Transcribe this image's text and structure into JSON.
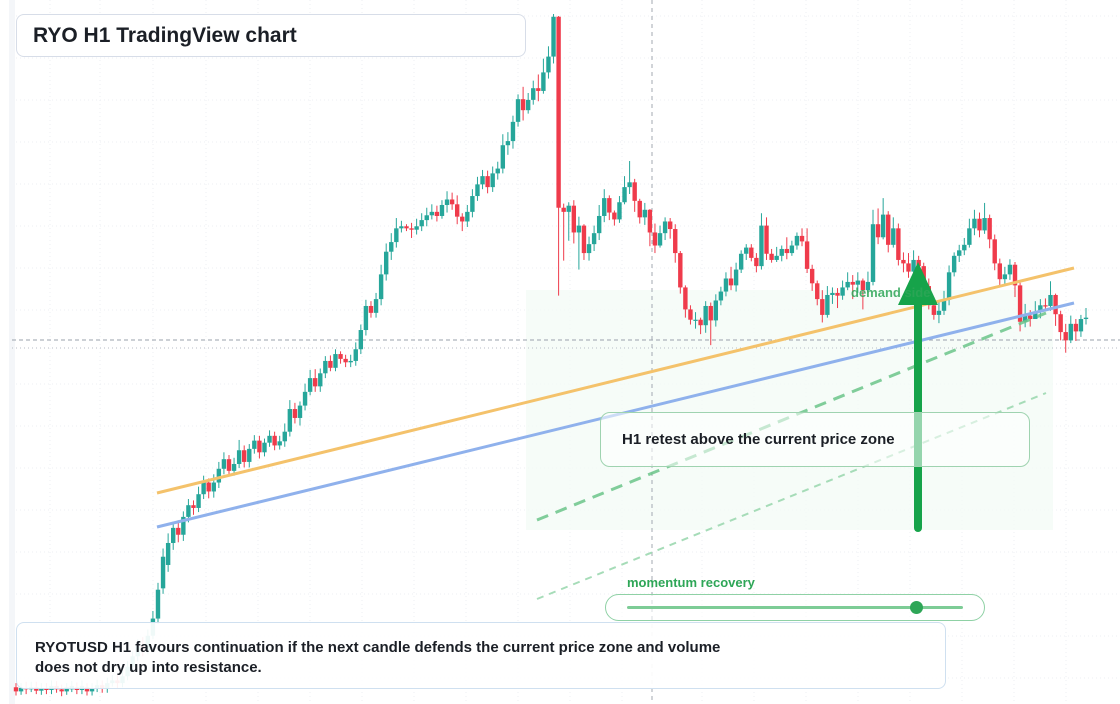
{
  "title": "RYO H1 TradingView chart",
  "callout": "H1 retest above the current price zone",
  "momentum": {
    "label": "momentum recovery",
    "level": 0.86
  },
  "demand_label": "demand side",
  "note": "RYOTUSD H1 favours continuation if the next candle defends the current price zone and volume does not dry up into resistance.",
  "colors": {
    "up": "#26a69a",
    "down": "#ef3b4b",
    "accent": "#16a34a",
    "orange": "#f4c26b",
    "blue": "#8fb1ec"
  },
  "chart_data": {
    "type": "candlestick",
    "y_reference": {
      "min": 0,
      "max": 100
    },
    "candles": [
      [
        2,
        1.4,
        2.6,
        0.8
      ],
      [
        1.4,
        1.9,
        2.6,
        0.9
      ],
      [
        1.9,
        1.7,
        2.8,
        1
      ],
      [
        1.7,
        2,
        2.8,
        1.3
      ],
      [
        2,
        1.5,
        2.8,
        1
      ],
      [
        1.5,
        1.9,
        2.6,
        0.9
      ],
      [
        1.9,
        1.6,
        2.6,
        1
      ],
      [
        1.6,
        2.2,
        3,
        1
      ],
      [
        2.2,
        1.7,
        2.9,
        1.2
      ],
      [
        1.7,
        1.4,
        2.4,
        0.7
      ],
      [
        1.4,
        2,
        2.6,
        0.9
      ],
      [
        1.7,
        2.2,
        2.9,
        1.3
      ],
      [
        2,
        1.6,
        2.7,
        1
      ],
      [
        1.6,
        2.2,
        3,
        1
      ],
      [
        2,
        1.4,
        2.6,
        0.8
      ],
      [
        1.4,
        1.9,
        2.6,
        0.8
      ],
      [
        1.9,
        2.3,
        3.1,
        1.3
      ],
      [
        2.3,
        1.8,
        3,
        1.2
      ],
      [
        1.8,
        2.6,
        3.4,
        1.2
      ],
      [
        2.6,
        3,
        3.8,
        2.1
      ],
      [
        3,
        2.6,
        3.8,
        1.9
      ],
      [
        2.6,
        3.6,
        4.4,
        2
      ],
      [
        3.6,
        5,
        5.8,
        3
      ],
      [
        5,
        6.5,
        7.2,
        4.4
      ],
      [
        6.5,
        8,
        9,
        5.8
      ],
      [
        8,
        7.4,
        9.3,
        6.5
      ],
      [
        7.4,
        9.5,
        10.4,
        6.8
      ],
      [
        9.5,
        12,
        13.1,
        9
      ],
      [
        12,
        16.2,
        17.2,
        11.2
      ],
      [
        16.4,
        21,
        22.2,
        15.6
      ],
      [
        19.8,
        23,
        24.4,
        18.8
      ],
      [
        23,
        25.2,
        26.1,
        22
      ],
      [
        25.2,
        24.2,
        26.3,
        23.1
      ],
      [
        24.2,
        26.8,
        27.6,
        23.3
      ],
      [
        26.8,
        28.5,
        29.4,
        26
      ],
      [
        28.5,
        28.1,
        29.2,
        27.1
      ],
      [
        28.1,
        30.1,
        31.2,
        27.5
      ],
      [
        30.1,
        31.8,
        32.8,
        29.4
      ],
      [
        31.8,
        30.5,
        32.4,
        29.5
      ],
      [
        30.5,
        31.8,
        33,
        29.6
      ],
      [
        31.8,
        33.8,
        34.8,
        31
      ],
      [
        33.8,
        35.2,
        36.2,
        33
      ],
      [
        35.2,
        33.5,
        35.8,
        32.7
      ],
      [
        33.5,
        34.5,
        35.4,
        32.8
      ],
      [
        34.5,
        36.5,
        38,
        33.9
      ],
      [
        36.5,
        34.8,
        37.2,
        34
      ],
      [
        34.8,
        36.7,
        37.4,
        34
      ],
      [
        36.7,
        37.9,
        38.7,
        36
      ],
      [
        37.9,
        36.2,
        38.6,
        35.3
      ],
      [
        36.2,
        37.6,
        38.2,
        35.6
      ],
      [
        37.6,
        38.6,
        39.4,
        37
      ],
      [
        38.6,
        37.2,
        39.2,
        36.5
      ],
      [
        37.2,
        37.8,
        38.6,
        36.6
      ],
      [
        37.8,
        39.2,
        40.4,
        37
      ],
      [
        39.2,
        42.5,
        43.8,
        38.5
      ],
      [
        42.5,
        41.2,
        43.4,
        40.4
      ],
      [
        41.2,
        43,
        43.6,
        40.1
      ],
      [
        43,
        45,
        46.2,
        42.3
      ],
      [
        45,
        47,
        48.2,
        44.5
      ],
      [
        47,
        45.8,
        48.3,
        45
      ],
      [
        45.8,
        47.7,
        48.4,
        45
      ],
      [
        47.7,
        49.5,
        50.2,
        47
      ],
      [
        49.5,
        48.5,
        50.3,
        48
      ],
      [
        48.5,
        50.5,
        51.2,
        48
      ],
      [
        50.5,
        49.8,
        50.9,
        49.1
      ],
      [
        49.8,
        49.3,
        50.4,
        48.6
      ],
      [
        49.3,
        49.5,
        50.4,
        48.6
      ],
      [
        49.5,
        51.2,
        52.2,
        48.8
      ],
      [
        51.2,
        54,
        54.8,
        50.5
      ],
      [
        54,
        57.5,
        58.4,
        53.2
      ],
      [
        57.5,
        56.5,
        58.2,
        55.8
      ],
      [
        56.5,
        58.5,
        59.4,
        55.8
      ],
      [
        58.5,
        62.1,
        63.5,
        57.6
      ],
      [
        62.1,
        65.4,
        66.6,
        61.2
      ],
      [
        65.4,
        66.8,
        68.1,
        64.2
      ],
      [
        66.8,
        68.8,
        70.3,
        66
      ],
      [
        68.8,
        69.1,
        69.9,
        68.2
      ],
      [
        69.1,
        68.8,
        69.4,
        68.4
      ],
      [
        68.8,
        68.6,
        69.6,
        67.4
      ],
      [
        68.6,
        69.1,
        70.2,
        67.9
      ],
      [
        69.1,
        70,
        71,
        68.4
      ],
      [
        70,
        70.7,
        71.8,
        69.1
      ],
      [
        70.7,
        71.2,
        72.3,
        70.1
      ],
      [
        71.2,
        70.6,
        72.1,
        69.8
      ],
      [
        70.6,
        72.2,
        72.9,
        70.2
      ],
      [
        72.2,
        73,
        74.2,
        71.1
      ],
      [
        73,
        72.3,
        74,
        71.5
      ],
      [
        72.3,
        70.5,
        73.6,
        69.4
      ],
      [
        70.5,
        69.8,
        71,
        68.4
      ],
      [
        69.8,
        71.2,
        72.2,
        69
      ],
      [
        71.2,
        73.5,
        74.5,
        70.4
      ],
      [
        73.5,
        75.2,
        76.3,
        72.8
      ],
      [
        75.2,
        76.4,
        77.3,
        74.5
      ],
      [
        76.4,
        74.8,
        77.2,
        73.9
      ],
      [
        74.8,
        76.8,
        77.8,
        74.1
      ],
      [
        76.8,
        77.5,
        78.5,
        75.9
      ],
      [
        77.5,
        80.9,
        82.5,
        76.8
      ],
      [
        80.9,
        81.5,
        82.8,
        79.5
      ],
      [
        81.5,
        84.3,
        85.2,
        80.4
      ],
      [
        84.3,
        87.6,
        88.3,
        83.6
      ],
      [
        87.6,
        86,
        89.4,
        84.5
      ],
      [
        86,
        87.5,
        88.5,
        85.5
      ],
      [
        87.5,
        89.2,
        90.3,
        86.8
      ],
      [
        89.2,
        88.8,
        91.2,
        87.3
      ],
      [
        88.8,
        91.5,
        93.5,
        88.4
      ],
      [
        91.5,
        93.8,
        95.3,
        90.6
      ],
      [
        93.8,
        99.6,
        100,
        92.8
      ],
      [
        99.6,
        71.8,
        99.7,
        59
      ],
      [
        71.8,
        71.2,
        72.4,
        64.1
      ],
      [
        71.2,
        72.1,
        72.6,
        67
      ],
      [
        72.1,
        68.2,
        72.9,
        66.6
      ],
      [
        68.2,
        69.2,
        70.5,
        62.8
      ],
      [
        69.2,
        65.2,
        69.4,
        64.2
      ],
      [
        65.2,
        66.5,
        67.6,
        64.1
      ],
      [
        66.5,
        68.1,
        69.2,
        65.5
      ],
      [
        68.1,
        70.6,
        72.2,
        67.1
      ],
      [
        70.6,
        73.2,
        74.5,
        69.7
      ],
      [
        73.2,
        71.1,
        73.6,
        70
      ],
      [
        71.1,
        70.1,
        71.4,
        69.2
      ],
      [
        70.1,
        72.6,
        73.5,
        69.6
      ],
      [
        72.6,
        74.8,
        76.4,
        72.3
      ],
      [
        74.8,
        75.5,
        78.6,
        73.8
      ],
      [
        75.5,
        72.8,
        76,
        71.2
      ],
      [
        72.8,
        70.4,
        73.1,
        69.5
      ],
      [
        70.4,
        71.5,
        72.5,
        69.3
      ],
      [
        71.5,
        68.2,
        71.6,
        66.2
      ],
      [
        68.2,
        66.3,
        69.5,
        65.2
      ],
      [
        66.3,
        68.1,
        69.2,
        66
      ],
      [
        68.1,
        69.8,
        70.4,
        67.1
      ],
      [
        69.8,
        68.7,
        70.3,
        67.3
      ],
      [
        68.7,
        65.2,
        69.4,
        63.8
      ],
      [
        65.2,
        60.2,
        65.5,
        59.3
      ],
      [
        60.2,
        57,
        60.5,
        55.8
      ],
      [
        57,
        55.5,
        57.6,
        54.8
      ],
      [
        55.5,
        55.5,
        56.6,
        54.2
      ],
      [
        55.5,
        54.7,
        55.8,
        53.4
      ],
      [
        54.7,
        57.5,
        58.2,
        53.6
      ],
      [
        57.5,
        55.4,
        58,
        51.8
      ],
      [
        55.4,
        58.3,
        59.2,
        54.5
      ],
      [
        58.3,
        59.6,
        60.3,
        57.6
      ],
      [
        59.6,
        61.5,
        62.4,
        58.9
      ],
      [
        61.5,
        60.5,
        63.2,
        59.8
      ],
      [
        60.5,
        62.8,
        63.8,
        59.6
      ],
      [
        62.8,
        65.1,
        65.6,
        62.3
      ],
      [
        65.1,
        66,
        66.5,
        64.2
      ],
      [
        66,
        64.5,
        66.5,
        64
      ],
      [
        64.5,
        63.3,
        65.2,
        62.4
      ],
      [
        63.3,
        69.2,
        71,
        62.8
      ],
      [
        69.2,
        65.1,
        70.4,
        64.2
      ],
      [
        65.1,
        64.2,
        65.8,
        63.8
      ],
      [
        64.2,
        64.8,
        66.1,
        63.9
      ],
      [
        64.8,
        65.8,
        66.3,
        64
      ],
      [
        65.8,
        65.2,
        67.5,
        64.3
      ],
      [
        65.2,
        66.3,
        67,
        64.8
      ],
      [
        66.3,
        67.7,
        68.2,
        65.7
      ],
      [
        67.7,
        66.9,
        68.8,
        66.2
      ],
      [
        66.9,
        62.9,
        68.8,
        62.3
      ],
      [
        62.9,
        60.8,
        63.5,
        59.7
      ],
      [
        60.8,
        58.5,
        61.2,
        57.6
      ],
      [
        58.5,
        56.2,
        59.8,
        55.1
      ],
      [
        56.2,
        59.1,
        60.4,
        55.8
      ],
      [
        59.1,
        59.4,
        60.2,
        57.8
      ],
      [
        59.4,
        59,
        60.1,
        57.2
      ],
      [
        59,
        60.2,
        61.2,
        58.4
      ],
      [
        60.2,
        61,
        62.4,
        59.8
      ],
      [
        61,
        60.6,
        62,
        58.5
      ],
      [
        60.6,
        61.2,
        62.4,
        59.4
      ],
      [
        61.2,
        59.8,
        61.5,
        57
      ],
      [
        59.8,
        61,
        62.5,
        59.5
      ],
      [
        61,
        69.4,
        71.5,
        60.5
      ],
      [
        69.4,
        67.5,
        71.7,
        66.5
      ],
      [
        67.5,
        70.8,
        73.2,
        67.2
      ],
      [
        70.8,
        66.4,
        71.3,
        65.3
      ],
      [
        66.4,
        68.8,
        70.4,
        66
      ],
      [
        68.8,
        64.2,
        69.5,
        63.4
      ],
      [
        64.2,
        63.7,
        65.3,
        62.4
      ],
      [
        63.7,
        62.5,
        65.2,
        61.6
      ],
      [
        62.5,
        64.2,
        65.6,
        61.8
      ],
      [
        64.2,
        63.3,
        64.8,
        61.2
      ],
      [
        63.3,
        60.4,
        63.8,
        58.9
      ],
      [
        60.4,
        57.6,
        61.5,
        57
      ],
      [
        57.6,
        56.2,
        58.8,
        55.5
      ],
      [
        56.2,
        56.8,
        58.2,
        55
      ],
      [
        56.8,
        58.4,
        59.7,
        56.2
      ],
      [
        58.4,
        62.4,
        63.4,
        57.6
      ],
      [
        62.4,
        64.8,
        65.3,
        61.8
      ],
      [
        64.8,
        65.6,
        66.4,
        63.9
      ],
      [
        65.6,
        66.4,
        67.4,
        64.9
      ],
      [
        66.4,
        68.8,
        70.2,
        66
      ],
      [
        68.8,
        70.2,
        71.5,
        67.8
      ],
      [
        70.2,
        68.5,
        71.1,
        67.5
      ],
      [
        68.5,
        70.3,
        72.5,
        68
      ],
      [
        70.3,
        67.2,
        70.8,
        65.9
      ],
      [
        67.2,
        63.7,
        67.9,
        62.7
      ],
      [
        63.7,
        61.4,
        64.4,
        60.5
      ],
      [
        61.4,
        62.1,
        63.2,
        60.4
      ],
      [
        62.1,
        63.5,
        64.3,
        61.3
      ],
      [
        63.5,
        60.5,
        63.9,
        58.8
      ],
      [
        60.5,
        55.2,
        60.9,
        53.8
      ],
      [
        55.2,
        56.1,
        57.8,
        54.4
      ],
      [
        56.1,
        55.6,
        56.9,
        54.5
      ],
      [
        55.6,
        56.7,
        58.2,
        55.8
      ],
      [
        56.7,
        57.6,
        58.5,
        55.7
      ],
      [
        57.6,
        57.5,
        58.6,
        56.7
      ],
      [
        57.5,
        59.1,
        61.1,
        56.8
      ],
      [
        59.1,
        56.3,
        59.3,
        54.6
      ],
      [
        56.3,
        53.7,
        56.8,
        52.5
      ],
      [
        53.7,
        52.5,
        54.9,
        50.7
      ],
      [
        52.5,
        54.9,
        56.1,
        52.1
      ],
      [
        54.9,
        53.8,
        55.6,
        52.4
      ],
      [
        53.8,
        55.6,
        56.2,
        53
      ],
      [
        55.6,
        55.8,
        57.2,
        54.8
      ]
    ],
    "trendlines": [
      "orange resistance",
      "blue support",
      "green dashed",
      "green light dashed"
    ],
    "markers": [
      "dashed horizontal price line",
      "dotted current price line",
      "dashed vertical crosshair",
      "green up arrow"
    ]
  }
}
